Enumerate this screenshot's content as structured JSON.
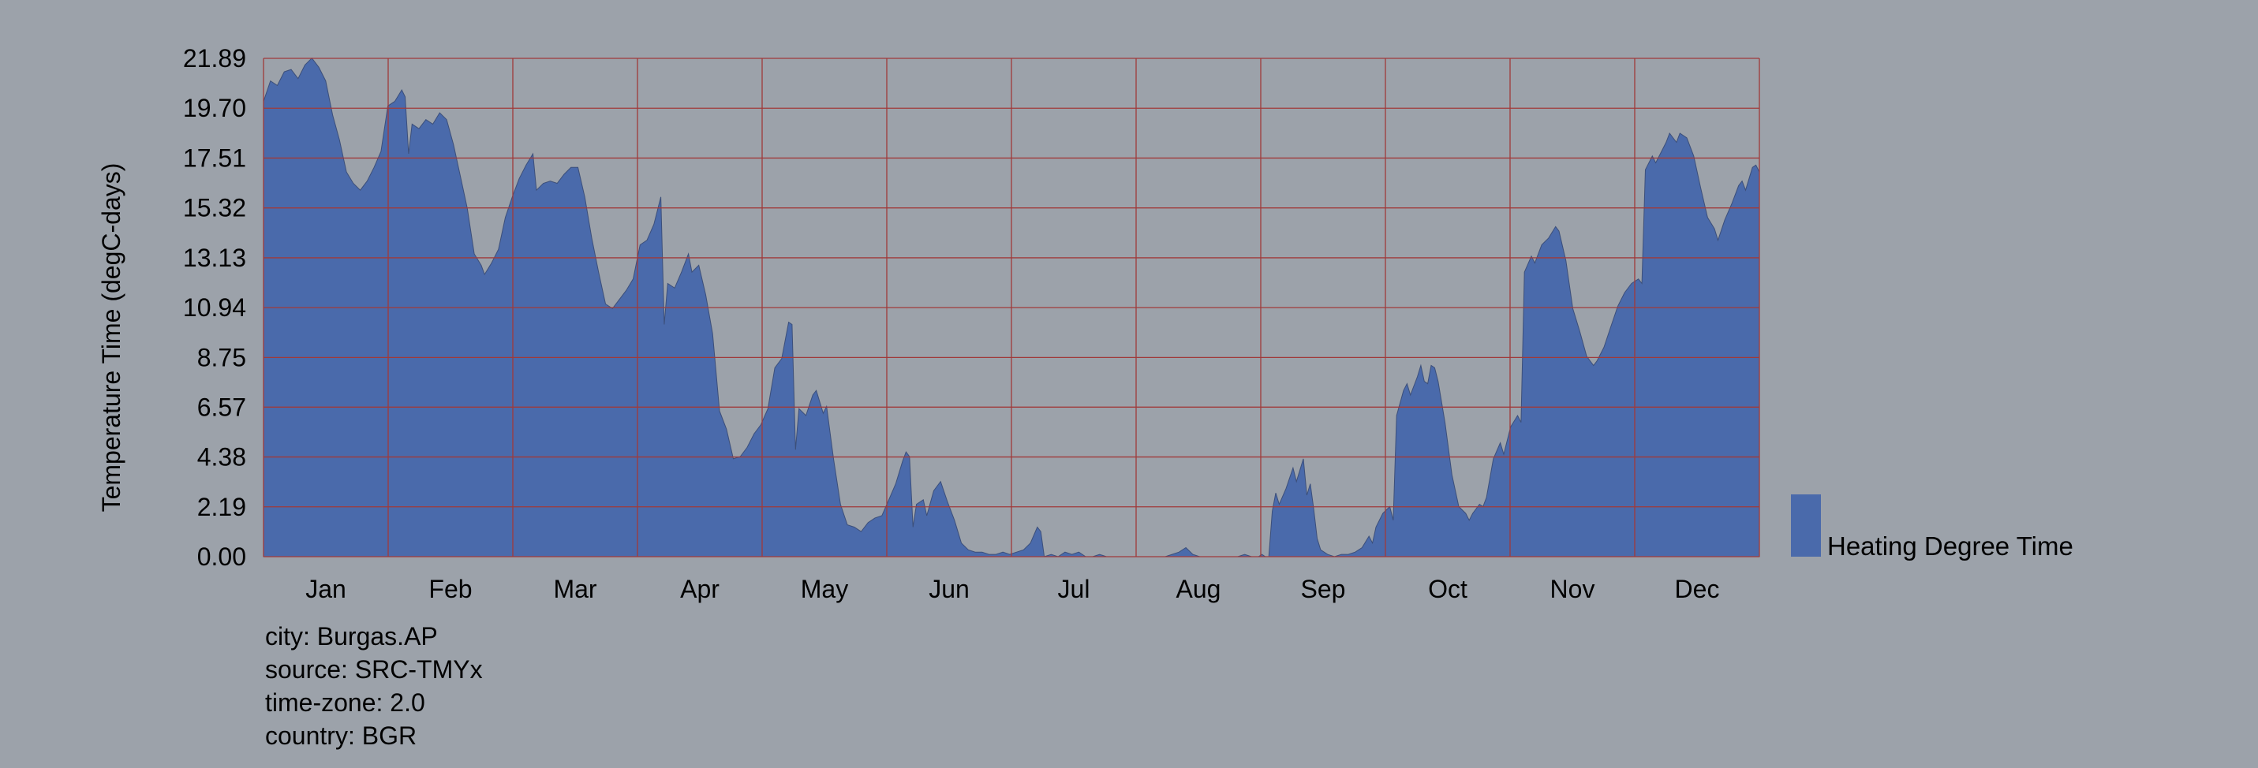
{
  "chart_data": {
    "type": "area",
    "title": "",
    "xlabel": "",
    "ylabel": "Temperature Time (degC-days)",
    "ylim": [
      0,
      21.89
    ],
    "yticks": [
      "0.00",
      "2.19",
      "4.38",
      "6.57",
      "8.75",
      "10.94",
      "13.13",
      "15.32",
      "17.51",
      "19.70",
      "21.89"
    ],
    "categories": [
      "Jan",
      "Feb",
      "Mar",
      "Apr",
      "May",
      "Jun",
      "Jul",
      "Aug",
      "Sep",
      "Oct",
      "Nov",
      "Dec"
    ],
    "grid": true,
    "grid_color": "#a03a3a",
    "fill_color": "#4a6aab",
    "legend_position": "bottom-right",
    "series": [
      {
        "name": "Heating Degree Time",
        "x_unit": "day of year",
        "points": [
          [
            1,
            20.0
          ],
          [
            3,
            20.9
          ],
          [
            5,
            20.7
          ],
          [
            7,
            21.3
          ],
          [
            9,
            21.4
          ],
          [
            11,
            21.0
          ],
          [
            13,
            21.6
          ],
          [
            15,
            21.9
          ],
          [
            17,
            21.5
          ],
          [
            19,
            20.9
          ],
          [
            21,
            19.4
          ],
          [
            23,
            18.3
          ],
          [
            25,
            16.9
          ],
          [
            27,
            16.4
          ],
          [
            29,
            16.1
          ],
          [
            31,
            16.5
          ],
          [
            33,
            17.1
          ],
          [
            35,
            17.8
          ],
          [
            37,
            19.8
          ],
          [
            39,
            20.0
          ],
          [
            41,
            20.5
          ],
          [
            42,
            20.2
          ],
          [
            43,
            17.7
          ],
          [
            44,
            19.0
          ],
          [
            46,
            18.8
          ],
          [
            48,
            19.2
          ],
          [
            50,
            19.0
          ],
          [
            52,
            19.5
          ],
          [
            54,
            19.2
          ],
          [
            56,
            18.1
          ],
          [
            58,
            16.7
          ],
          [
            60,
            15.3
          ],
          [
            62,
            13.3
          ],
          [
            64,
            12.8
          ],
          [
            65,
            12.4
          ],
          [
            67,
            12.9
          ],
          [
            69,
            13.5
          ],
          [
            71,
            14.9
          ],
          [
            73,
            15.8
          ],
          [
            75,
            16.6
          ],
          [
            77,
            17.2
          ],
          [
            79,
            17.7
          ],
          [
            80,
            16.1
          ],
          [
            82,
            16.4
          ],
          [
            84,
            16.5
          ],
          [
            86,
            16.4
          ],
          [
            88,
            16.8
          ],
          [
            90,
            17.1
          ],
          [
            92,
            17.1
          ],
          [
            94,
            15.8
          ],
          [
            96,
            14.0
          ],
          [
            98,
            12.5
          ],
          [
            100,
            11.1
          ],
          [
            102,
            10.9
          ],
          [
            104,
            11.3
          ],
          [
            106,
            11.7
          ],
          [
            108,
            12.2
          ],
          [
            110,
            13.7
          ],
          [
            112,
            13.9
          ],
          [
            114,
            14.6
          ],
          [
            116,
            15.8
          ],
          [
            117,
            10.2
          ],
          [
            118,
            12.0
          ],
          [
            120,
            11.8
          ],
          [
            122,
            12.5
          ],
          [
            124,
            13.3
          ],
          [
            125,
            12.5
          ],
          [
            127,
            12.8
          ],
          [
            129,
            11.5
          ],
          [
            131,
            9.8
          ],
          [
            132,
            8.1
          ],
          [
            133,
            6.4
          ],
          [
            135,
            5.6
          ],
          [
            137,
            4.3
          ],
          [
            139,
            4.4
          ],
          [
            141,
            4.8
          ],
          [
            143,
            5.4
          ],
          [
            145,
            5.8
          ],
          [
            147,
            6.5
          ],
          [
            149,
            8.3
          ],
          [
            151,
            8.7
          ],
          [
            153,
            10.3
          ],
          [
            154,
            10.2
          ],
          [
            155,
            4.7
          ],
          [
            156,
            6.5
          ],
          [
            158,
            6.2
          ],
          [
            160,
            7.1
          ],
          [
            161,
            7.3
          ],
          [
            163,
            6.3
          ],
          [
            164,
            6.6
          ],
          [
            166,
            4.3
          ],
          [
            168,
            2.3
          ],
          [
            170,
            1.4
          ],
          [
            172,
            1.3
          ],
          [
            174,
            1.1
          ],
          [
            176,
            1.5
          ],
          [
            178,
            1.7
          ],
          [
            180,
            1.8
          ],
          [
            182,
            2.5
          ],
          [
            184,
            3.2
          ],
          [
            186,
            4.2
          ],
          [
            187,
            4.6
          ],
          [
            188,
            4.4
          ],
          [
            189,
            1.3
          ],
          [
            190,
            2.3
          ],
          [
            192,
            2.5
          ],
          [
            193,
            1.8
          ],
          [
            195,
            2.9
          ],
          [
            197,
            3.3
          ],
          [
            199,
            2.4
          ],
          [
            201,
            1.6
          ],
          [
            203,
            0.6
          ],
          [
            205,
            0.3
          ],
          [
            207,
            0.2
          ],
          [
            209,
            0.2
          ],
          [
            211,
            0.1
          ],
          [
            213,
            0.1
          ],
          [
            215,
            0.2
          ],
          [
            217,
            0.1
          ],
          [
            219,
            0.2
          ],
          [
            221,
            0.3
          ],
          [
            223,
            0.6
          ],
          [
            225,
            1.3
          ],
          [
            226,
            1.1
          ],
          [
            227,
            0.0
          ],
          [
            229,
            0.1
          ],
          [
            231,
            0.0
          ],
          [
            233,
            0.2
          ],
          [
            235,
            0.1
          ],
          [
            237,
            0.2
          ],
          [
            239,
            0.0
          ],
          [
            241,
            0.0
          ],
          [
            243,
            0.1
          ],
          [
            245,
            0.0
          ],
          [
            250,
            0.0
          ],
          [
            256,
            0.0
          ],
          [
            260,
            0.0
          ],
          [
            262,
            0.0
          ],
          [
            264,
            0.1
          ],
          [
            266,
            0.2
          ],
          [
            268,
            0.4
          ],
          [
            270,
            0.1
          ],
          [
            272,
            0.0
          ],
          [
            278,
            0.0
          ],
          [
            283,
            0.0
          ],
          [
            285,
            0.1
          ],
          [
            287,
            0.0
          ],
          [
            289,
            0.0
          ],
          [
            290,
            0.1
          ],
          [
            291,
            0.0
          ],
          [
            292,
            0.0
          ],
          [
            293,
            2.0
          ],
          [
            294,
            2.8
          ],
          [
            295,
            2.3
          ],
          [
            297,
            3.0
          ],
          [
            299,
            3.9
          ],
          [
            300,
            3.3
          ],
          [
            302,
            4.3
          ],
          [
            303,
            2.7
          ],
          [
            304,
            3.2
          ],
          [
            305,
            2.1
          ],
          [
            306,
            0.8
          ],
          [
            307,
            0.3
          ],
          [
            309,
            0.1
          ],
          [
            311,
            0.0
          ],
          [
            313,
            0.1
          ],
          [
            315,
            0.1
          ],
          [
            317,
            0.2
          ],
          [
            319,
            0.4
          ],
          [
            321,
            0.9
          ],
          [
            322,
            0.6
          ],
          [
            323,
            1.3
          ],
          [
            325,
            1.9
          ],
          [
            327,
            2.2
          ],
          [
            328,
            1.6
          ],
          [
            329,
            6.2
          ],
          [
            331,
            7.3
          ],
          [
            332,
            7.6
          ],
          [
            333,
            7.1
          ],
          [
            335,
            7.9
          ],
          [
            336,
            8.4
          ],
          [
            337,
            7.7
          ],
          [
            338,
            7.6
          ],
          [
            339,
            8.4
          ],
          [
            340,
            8.3
          ],
          [
            341,
            7.7
          ],
          [
            343,
            5.9
          ],
          [
            345,
            3.6
          ],
          [
            347,
            2.2
          ],
          [
            349,
            1.9
          ],
          [
            350,
            1.6
          ],
          [
            351,
            1.9
          ],
          [
            353,
            2.3
          ],
          [
            354,
            2.2
          ],
          [
            355,
            2.6
          ],
          [
            357,
            4.3
          ],
          [
            359,
            5.0
          ],
          [
            360,
            4.5
          ],
          [
            362,
            5.7
          ],
          [
            364,
            6.2
          ],
          [
            365,
            5.9
          ],
          [
            366,
            12.5
          ],
          [
            368,
            13.2
          ],
          [
            369,
            12.9
          ],
          [
            371,
            13.7
          ],
          [
            373,
            14.0
          ],
          [
            375,
            14.5
          ],
          [
            376,
            14.3
          ],
          [
            378,
            13.0
          ],
          [
            380,
            10.9
          ],
          [
            382,
            9.9
          ],
          [
            384,
            8.8
          ],
          [
            386,
            8.4
          ],
          [
            387,
            8.6
          ],
          [
            389,
            9.2
          ],
          [
            391,
            10.1
          ],
          [
            393,
            11.0
          ],
          [
            395,
            11.6
          ],
          [
            397,
            12.0
          ],
          [
            399,
            12.2
          ],
          [
            400,
            12.0
          ],
          [
            401,
            17.0
          ],
          [
            403,
            17.6
          ],
          [
            404,
            17.3
          ],
          [
            405,
            17.6
          ],
          [
            407,
            18.2
          ],
          [
            408,
            18.6
          ],
          [
            410,
            18.2
          ],
          [
            411,
            18.6
          ],
          [
            413,
            18.4
          ],
          [
            415,
            17.6
          ],
          [
            417,
            16.2
          ],
          [
            419,
            14.9
          ],
          [
            421,
            14.4
          ],
          [
            422,
            13.9
          ],
          [
            424,
            14.8
          ],
          [
            426,
            15.5
          ],
          [
            428,
            16.3
          ],
          [
            429,
            16.5
          ],
          [
            430,
            16.1
          ],
          [
            432,
            17.1
          ],
          [
            433,
            17.2
          ],
          [
            434,
            16.9
          ]
        ]
      }
    ]
  },
  "meta": {
    "city": "city: Burgas.AP",
    "source": "source: SRC-TMYx",
    "timezone": "time-zone: 2.0",
    "country": "country: BGR"
  }
}
